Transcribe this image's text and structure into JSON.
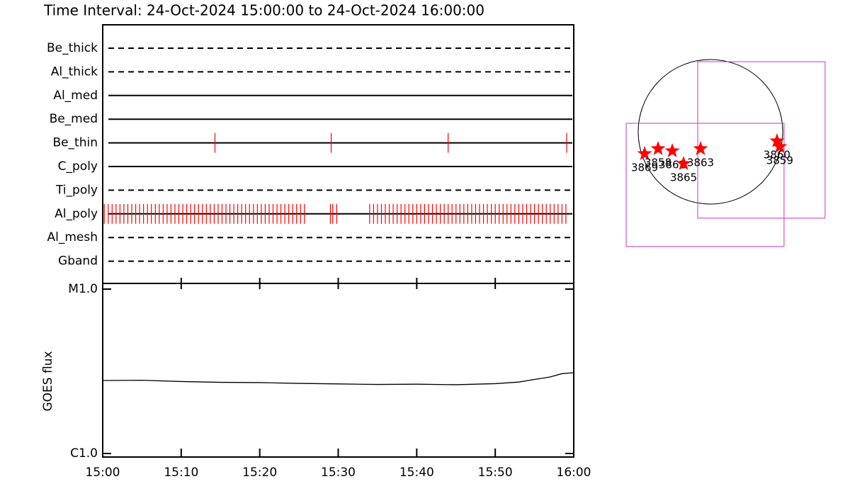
{
  "chart_data": [
    {
      "type": "timeline",
      "title": "Time Interval: 24-Oct-2024 15:00:00 to 24-Oct-2024 16:00:00",
      "xlim": [
        0,
        60
      ],
      "event_color": "#ff0000",
      "rows": [
        {
          "name": "Be_thick",
          "style": "dashed",
          "events": []
        },
        {
          "name": "Al_thick",
          "style": "dashed",
          "events": []
        },
        {
          "name": "Al_med",
          "style": "solid",
          "events": []
        },
        {
          "name": "Be_med",
          "style": "solid",
          "events": []
        },
        {
          "name": "Be_thin",
          "style": "solid",
          "events": [
            14.3,
            29.1,
            44.0,
            59.1
          ]
        },
        {
          "name": "C_poly",
          "style": "solid",
          "events": []
        },
        {
          "name": "Ti_poly",
          "style": "dashed",
          "events": []
        },
        {
          "name": "Al_poly",
          "style": "solid",
          "events": [
            0.2,
            0.7,
            1.2,
            1.7,
            2.2,
            2.7,
            3.2,
            3.7,
            4.2,
            4.7,
            5.2,
            5.7,
            6.2,
            6.7,
            7.2,
            7.7,
            8.2,
            8.7,
            9.2,
            9.7,
            10.2,
            10.7,
            11.2,
            11.7,
            12.2,
            12.7,
            13.2,
            13.7,
            14.2,
            14.7,
            15.2,
            15.7,
            16.2,
            16.7,
            17.2,
            17.7,
            18.2,
            18.7,
            19.2,
            19.7,
            20.2,
            20.7,
            21.2,
            21.7,
            22.2,
            22.7,
            23.2,
            23.7,
            24.2,
            24.7,
            25.2,
            25.7,
            29.0,
            29.3,
            29.8,
            34.0,
            34.5,
            35.0,
            35.5,
            36.0,
            36.5,
            37.0,
            37.5,
            38.0,
            38.5,
            39.0,
            39.5,
            40.0,
            40.5,
            41.0,
            41.5,
            42.0,
            42.5,
            43.0,
            43.5,
            44.0,
            44.5,
            45.0,
            45.5,
            46.0,
            46.5,
            47.0,
            47.5,
            48.0,
            48.5,
            49.0,
            49.5,
            50.0,
            50.5,
            51.0,
            51.5,
            52.0,
            52.5,
            53.0,
            53.5,
            54.0,
            54.5,
            55.0,
            55.5,
            56.0,
            56.5,
            57.0,
            57.5,
            58.0,
            58.5,
            59.0
          ]
        },
        {
          "name": "Al_mesh",
          "style": "dashed",
          "events": []
        },
        {
          "name": "Gband",
          "style": "dashed",
          "events": []
        }
      ]
    },
    {
      "type": "line",
      "ylabel": "GOES flux",
      "log": true,
      "color": "#000000",
      "x": [
        0,
        5,
        10,
        15,
        20,
        25,
        30,
        35,
        40,
        45,
        50,
        53,
        55,
        57,
        58.5,
        60
      ],
      "values": [
        2.78e-06,
        2.79e-06,
        2.74e-06,
        2.71e-06,
        2.7e-06,
        2.67e-06,
        2.65e-06,
        2.63e-06,
        2.64e-06,
        2.62e-06,
        2.66e-06,
        2.72e-06,
        2.82e-06,
        2.92e-06,
        3.06e-06,
        3.1e-06
      ],
      "xlim": [
        0,
        60
      ],
      "xticks": [
        {
          "value": 0,
          "label": "15:00"
        },
        {
          "value": 10,
          "label": "15:10"
        },
        {
          "value": 20,
          "label": "15:20"
        },
        {
          "value": 30,
          "label": "15:30"
        },
        {
          "value": 40,
          "label": "15:40"
        },
        {
          "value": 50,
          "label": "15:50"
        },
        {
          "value": 60,
          "label": "16:00"
        }
      ],
      "ylim": [
        1e-06,
        1e-05
      ],
      "yticks": [
        {
          "value": 1e-06,
          "label": "C1.0"
        },
        {
          "value": 1e-05,
          "label": "M1.0"
        }
      ]
    },
    {
      "type": "scatter",
      "color": "#ff0000",
      "sun_radius": 970,
      "fov_color": "#cc33cc",
      "labels": [
        "3869",
        "3858",
        "3862",
        "3865",
        "3863",
        "3860",
        "3859"
      ],
      "x": [
        -884,
        -703,
        -513,
        -361,
        -133,
        893,
        931
      ],
      "y": [
        -295,
        -228,
        -257,
        -428,
        -228,
        -124,
        -200
      ],
      "fovs": [
        {
          "x0": -171,
          "x1": 1539,
          "y0": -1159,
          "y1": 941
        },
        {
          "x0": -1131,
          "x1": 988,
          "y0": -1539,
          "y1": 114
        }
      ]
    }
  ]
}
